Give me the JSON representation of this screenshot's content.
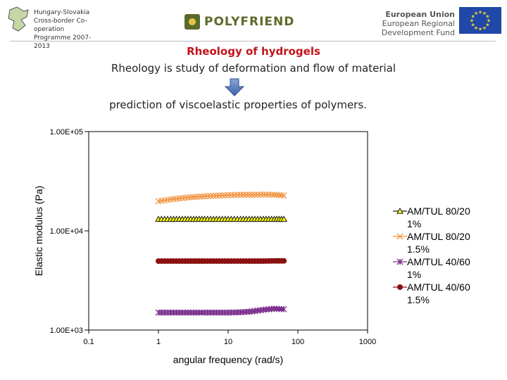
{
  "header": {
    "left_logo_text": "Hungary-Slovakia\nCross-border Co-operation\nProgramme 2007-2013",
    "center_logo_text": "POLYFRIEND",
    "eu_line1": "European Union",
    "eu_line2": "European Regional Development Fund",
    "colors": {
      "olive": "#5d6b2b",
      "eu_blue": "#2048a8",
      "eu_star": "#f2d230"
    }
  },
  "slide": {
    "title": "Rheology of hydrogels",
    "line1": "Rheology is study of deformation and flow of material",
    "line2": "prediction of viscoelastic properties of polymers.",
    "title_color": "#c0141a"
  },
  "chart_data": {
    "type": "line",
    "ylabel": "Elastic modulus (Pa)",
    "xlabel": "angular frequency (rad/s)",
    "xscale": "log",
    "yscale": "log",
    "xlim": [
      0.1,
      1000
    ],
    "ylim": [
      1000,
      100000
    ],
    "x_ticks": [
      "0.1",
      "1",
      "10",
      "100",
      "1000"
    ],
    "y_ticks": [
      "1.00E+03",
      "1.00E+04",
      "1.00E+05"
    ],
    "legend_position": "right",
    "grid": false,
    "series": [
      {
        "name": "AM/TUL 80/20 1%",
        "marker": "triangle",
        "color": "#1a1a1a",
        "fill": "#ffff00",
        "x": [
          1.0,
          1.5,
          2.2,
          3.2,
          4.6,
          6.8,
          10,
          15,
          22,
          32,
          46,
          63
        ],
        "y": [
          13100,
          13100,
          13100,
          13100,
          13100,
          13100,
          13100,
          13100,
          13100,
          13100,
          13100,
          13100
        ]
      },
      {
        "name": "AM/TUL 80/20 1.5%",
        "marker": "x",
        "color": "#f29340",
        "x": [
          1.0,
          1.5,
          2.2,
          3.2,
          4.6,
          6.8,
          10,
          15,
          22,
          32,
          46,
          63
        ],
        "y": [
          19900,
          20700,
          21400,
          21900,
          22300,
          22600,
          22900,
          23100,
          23100,
          23200,
          23100,
          22700
        ]
      },
      {
        "name": "AM/TUL 40/60 1%",
        "marker": "star",
        "color": "#7a2c8c",
        "x": [
          1.0,
          1.5,
          2.2,
          3.2,
          4.6,
          6.8,
          10,
          15,
          22,
          32,
          46,
          63
        ],
        "y": [
          1500,
          1500,
          1500,
          1500,
          1500,
          1500,
          1500,
          1510,
          1540,
          1600,
          1640,
          1620
        ]
      },
      {
        "name": "AM/TUL 40/60 1.5%",
        "marker": "circle",
        "color": "#8b1010",
        "x": [
          1.0,
          1.5,
          2.2,
          3.2,
          4.6,
          6.8,
          10,
          15,
          22,
          32,
          46,
          63
        ],
        "y": [
          4950,
          4950,
          4950,
          4950,
          4950,
          4950,
          4950,
          4950,
          4950,
          4950,
          4980,
          4980
        ]
      }
    ]
  }
}
